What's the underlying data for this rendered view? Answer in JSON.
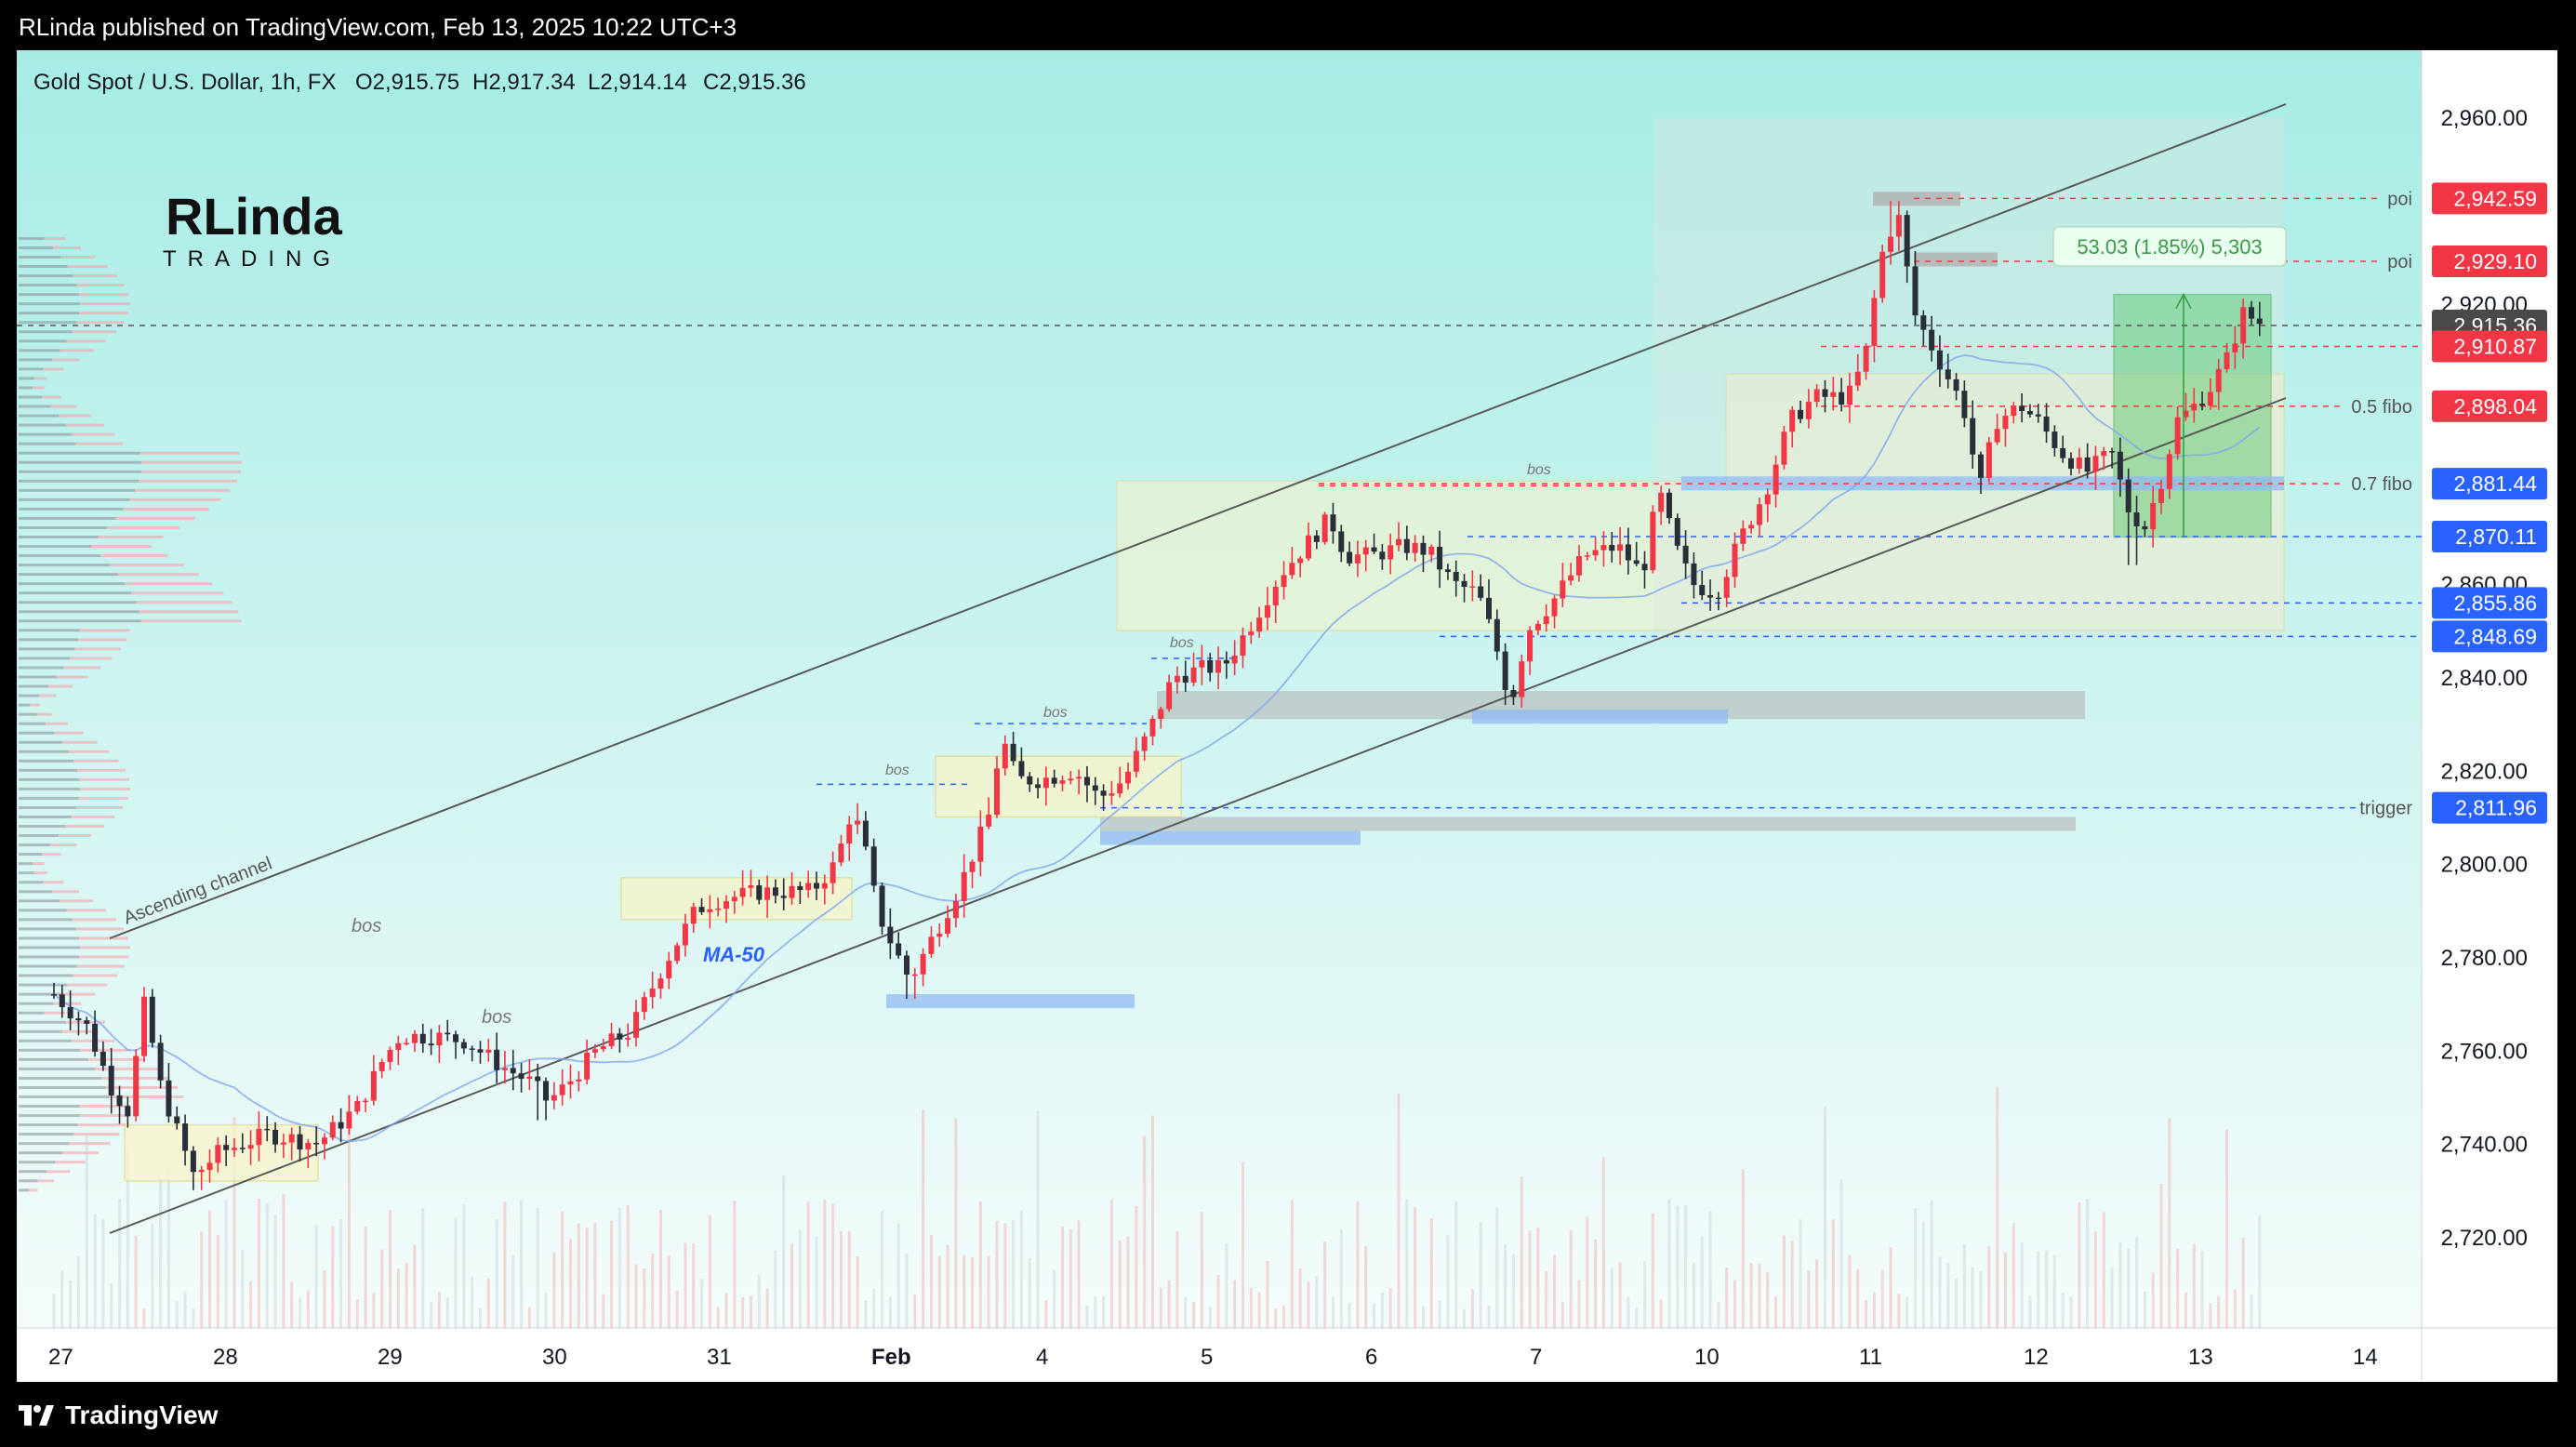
{
  "header": {
    "published": "RLinda published on TradingView.com, Feb 13, 2025 10:22 UTC+3"
  },
  "legend": {
    "symbol": "Gold Spot / U.S. Dollar, 1h, FX",
    "open": "O2,915.75",
    "high": "H2,917.34",
    "low": "L2,914.14",
    "close": "C2,915.36"
  },
  "logo": {
    "line1": "RLinda",
    "line2": "TRADING"
  },
  "footer": {
    "brand": "TradingView"
  },
  "colors": {
    "up": "#f23645",
    "down": "#2a2e39",
    "bg_top": "#a8ede6",
    "bg_bottom": "#f2fbfa",
    "red_label": "#f23645",
    "blue_label": "#2962ff",
    "grey_label": "#4a4a4a"
  },
  "chart_data": {
    "type": "candlestick",
    "timeframe": "1h",
    "x_ticks": [
      "27",
      "28",
      "29",
      "30",
      "31",
      "Feb",
      "4",
      "5",
      "6",
      "7",
      "10",
      "11",
      "12",
      "13",
      "14"
    ],
    "y_ticks": [
      "2,960.00",
      "2,920.00",
      "2,860.00",
      "2,840.00",
      "2,820.00",
      "2,800.00",
      "2,780.00",
      "2,760.00",
      "2,740.00",
      "2,720.00"
    ],
    "ylim": [
      2700,
      2972
    ],
    "price_labels": [
      {
        "value": "2,942.59",
        "kind": "red"
      },
      {
        "value": "2,929.10",
        "kind": "red"
      },
      {
        "value": "2,915.36",
        "kind": "grey"
      },
      {
        "value": "2,910.87",
        "kind": "red"
      },
      {
        "value": "2,898.04",
        "kind": "red"
      },
      {
        "value": "2,881.44",
        "kind": "blue"
      },
      {
        "value": "2,870.11",
        "kind": "blue"
      },
      {
        "value": "2,855.86",
        "kind": "blue"
      },
      {
        "value": "2,848.69",
        "kind": "blue"
      },
      {
        "value": "2,811.96",
        "kind": "blue"
      }
    ],
    "level_tags": [
      {
        "text": "poi",
        "price": 2942.59
      },
      {
        "text": "poi",
        "price": 2929.1
      },
      {
        "text": "0.5 fibo",
        "price": 2898.04
      },
      {
        "text": "0.7 fibo",
        "price": 2881.44
      },
      {
        "text": "trigger",
        "price": 2811.96
      }
    ],
    "annotations": {
      "channel": "Ascending channel",
      "ma": "MA-50",
      "bos": [
        "bos",
        "bos",
        "bos",
        "bos",
        "bos",
        "bos"
      ],
      "measure": "53.03 (1.85%) 5,303"
    },
    "ohlc_approx": {
      "anchors": [
        [
          "27",
          2770
        ],
        [
          "27.5",
          2752
        ],
        [
          "28",
          2733
        ],
        [
          "28.5",
          2742
        ],
        [
          "29",
          2758
        ],
        [
          "29.5",
          2762
        ],
        [
          "30",
          2748
        ],
        [
          "30.4",
          2762
        ],
        [
          "30.7",
          2780
        ],
        [
          "31",
          2792
        ],
        [
          "31.5",
          2794
        ],
        [
          "31.8",
          2812
        ],
        [
          "Feb",
          2780
        ],
        [
          "Feb.3",
          2803
        ],
        [
          "Feb.6",
          2826
        ],
        [
          "Feb.8",
          2814
        ],
        [
          "4",
          2816
        ],
        [
          "4.5",
          2835
        ],
        [
          "5",
          2842
        ],
        [
          "5.5",
          2870
        ],
        [
          "5.8",
          2874
        ],
        [
          "6",
          2867
        ],
        [
          "6.5",
          2866
        ],
        [
          "6.7",
          2852
        ],
        [
          "7",
          2845
        ],
        [
          "7.5",
          2866
        ],
        [
          "7.8",
          2858
        ],
        [
          "7.9",
          2882
        ],
        [
          "10",
          2858
        ],
        [
          "10.3",
          2868
        ],
        [
          "10.6",
          2895
        ],
        [
          "10.8",
          2898
        ],
        [
          "11",
          2905
        ],
        [
          "11.2",
          2935
        ],
        [
          "11.4",
          2910
        ],
        [
          "11.6",
          2900
        ],
        [
          "12",
          2895
        ],
        [
          "12.3",
          2890
        ],
        [
          "12.6",
          2876
        ],
        [
          "12.8",
          2898
        ],
        [
          "13",
          2903
        ],
        [
          "13.3",
          2918
        ],
        [
          "13.4",
          2915
        ]
      ]
    }
  }
}
